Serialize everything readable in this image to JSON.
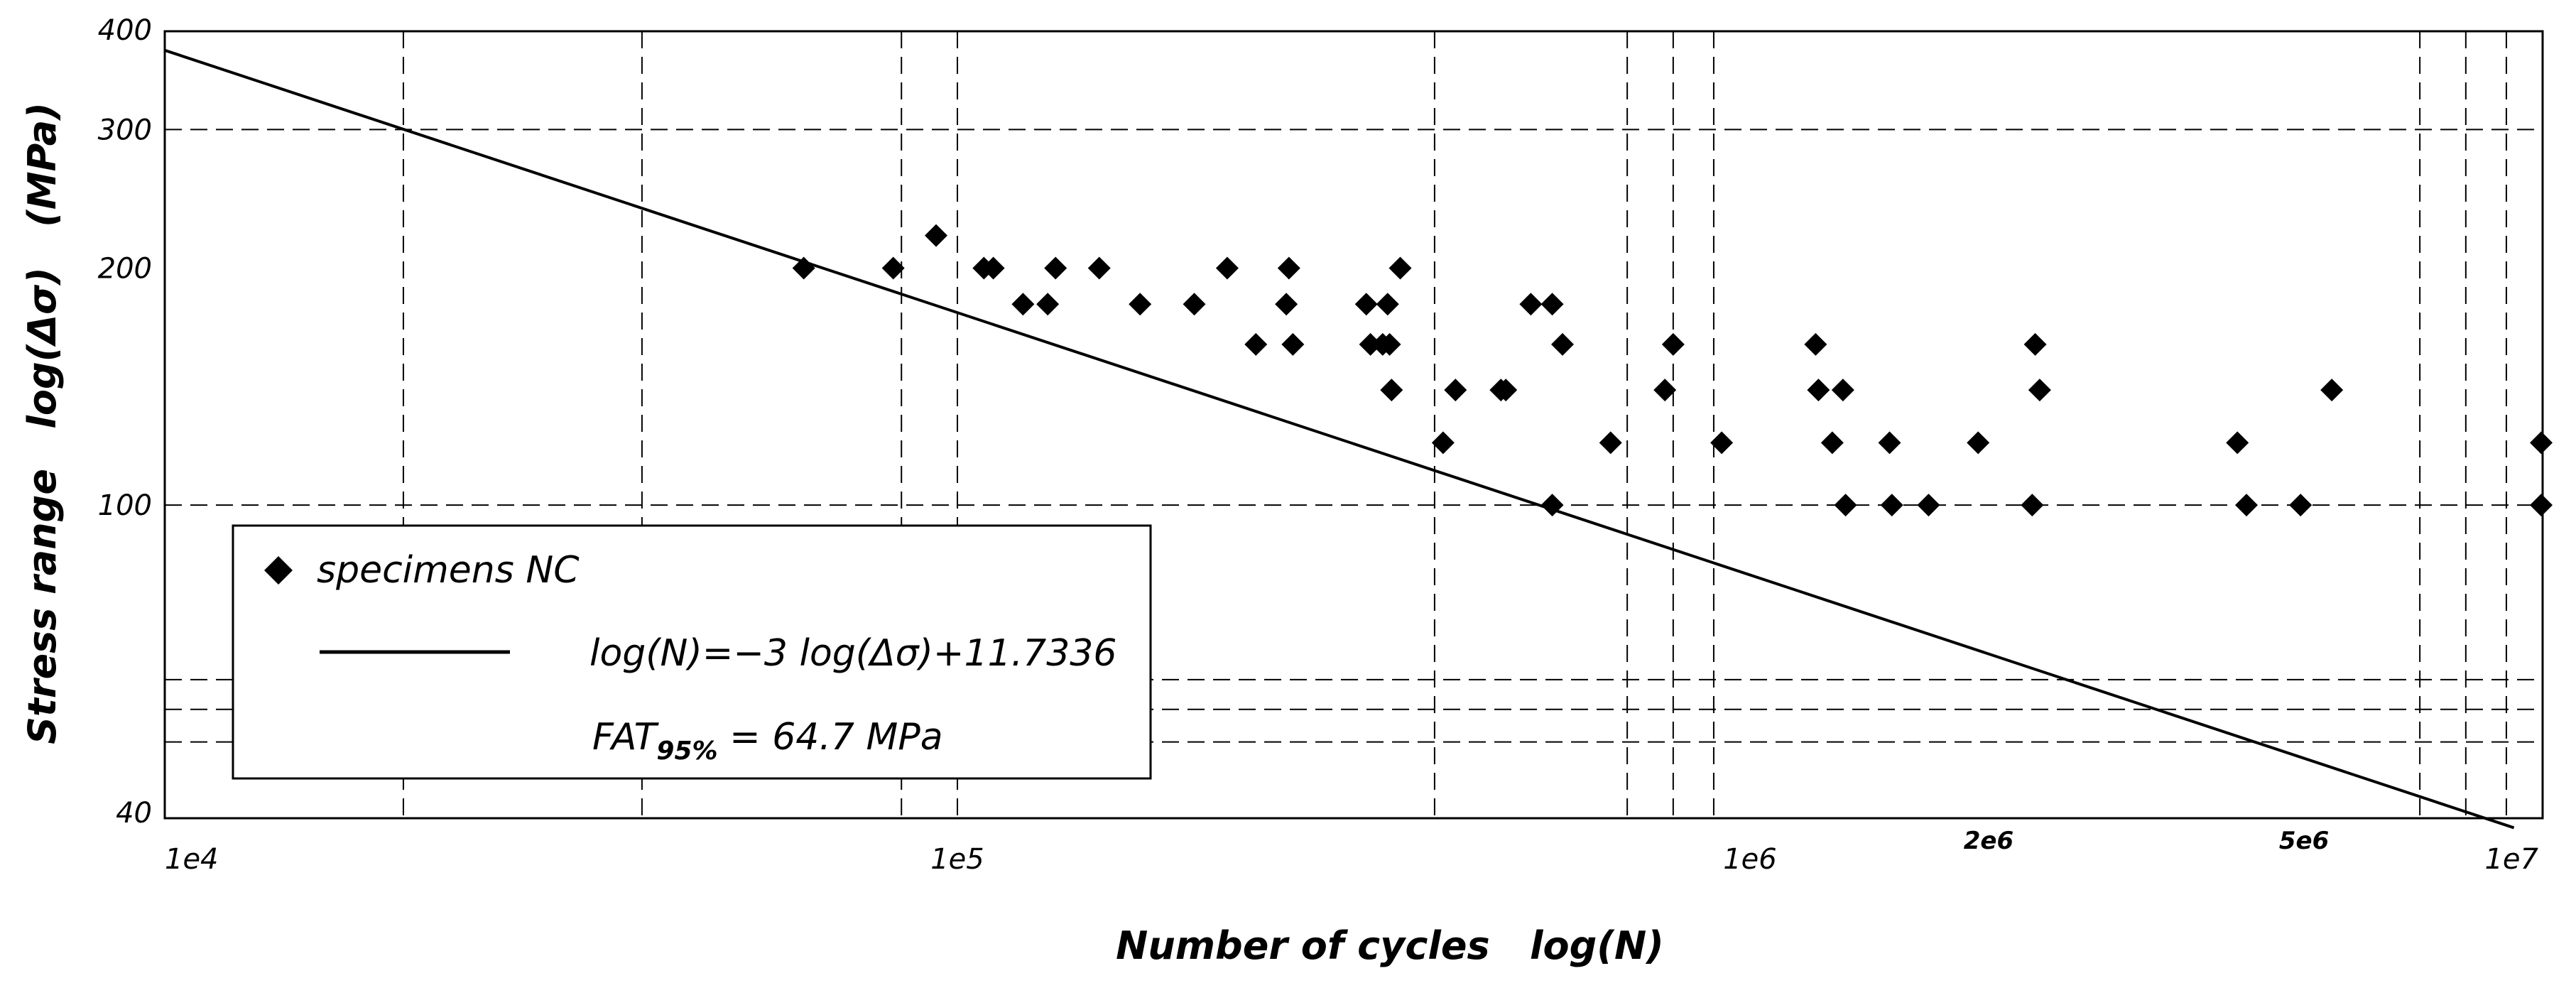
{
  "chart_data": {
    "type": "scatter",
    "xscale": "log",
    "yscale": "log",
    "xlim": [
      10000,
      10000000
    ],
    "ylim": [
      40,
      400
    ],
    "xlabel": "Number of cycles   log(N)",
    "ylabel": "Stress range   log(Δσ)   (MPa)",
    "x_tick_labels": [
      {
        "value": 10000,
        "label": "1e4"
      },
      {
        "value": 100000,
        "label": "1e5"
      },
      {
        "value": 1000000,
        "label": "1e6"
      },
      {
        "value": 2000000,
        "label": "2e6"
      },
      {
        "value": 5000000,
        "label": "5e6"
      },
      {
        "value": 10000000,
        "label": "1e7"
      }
    ],
    "y_tick_labels": [
      {
        "value": 40,
        "label": "40"
      },
      {
        "value": 100,
        "label": "100"
      },
      {
        "value": 200,
        "label": "200"
      },
      {
        "value": 300,
        "label": "300"
      },
      {
        "value": 400,
        "label": "400"
      }
    ],
    "x_gridlines": [
      20000,
      40000,
      85000,
      100000,
      400000,
      700000,
      800000,
      900000,
      7000000,
      8000000,
      9000000
    ],
    "y_gridlines": [
      50,
      55,
      60,
      100,
      300
    ],
    "series": [
      {
        "name": "specimens NC",
        "marker": "diamond",
        "color": "#000000",
        "points": [
          [
            64000,
            200
          ],
          [
            83000,
            200
          ],
          [
            94000,
            220
          ],
          [
            108000,
            200
          ],
          [
            111000,
            200
          ],
          [
            121000,
            180
          ],
          [
            130000,
            180
          ],
          [
            133000,
            200
          ],
          [
            151000,
            200
          ],
          [
            170000,
            180
          ],
          [
            199000,
            180
          ],
          [
            219000,
            200
          ],
          [
            238000,
            160
          ],
          [
            260000,
            180
          ],
          [
            262000,
            200
          ],
          [
            265000,
            160
          ],
          [
            328000,
            180
          ],
          [
            332000,
            160
          ],
          [
            344000,
            160
          ],
          [
            349000,
            180
          ],
          [
            351000,
            160
          ],
          [
            353000,
            140
          ],
          [
            362000,
            200
          ],
          [
            410000,
            120
          ],
          [
            425000,
            140
          ],
          [
            485000,
            140
          ],
          [
            492000,
            140
          ],
          [
            529000,
            180
          ],
          [
            563000,
            180
          ],
          [
            563000,
            100
          ],
          [
            580000,
            160
          ],
          [
            667000,
            120
          ],
          [
            781000,
            140
          ],
          [
            800000,
            160
          ],
          [
            921000,
            120
          ],
          [
            1210000,
            160
          ],
          [
            1220000,
            140
          ],
          [
            1270000,
            120
          ],
          [
            1310000,
            140
          ],
          [
            1320000,
            100
          ],
          [
            1500000,
            120
          ],
          [
            1510000,
            100
          ],
          [
            1680000,
            100
          ],
          [
            1940000,
            120
          ],
          [
            2270000,
            100
          ],
          [
            2290000,
            160
          ],
          [
            2320000,
            140
          ],
          [
            4120000,
            120
          ],
          [
            4230000,
            100
          ],
          [
            4950000,
            100
          ],
          [
            5420000,
            140
          ],
          [
            10000000,
            120
          ],
          [
            10000000,
            100
          ]
        ]
      },
      {
        "name": "log(N)=−3 log(Δσ)+11.7336",
        "type": "line",
        "equation": {
          "slope": -3,
          "intercept": 11.7336
        },
        "x_range": [
          10000,
          9200000
        ],
        "color": "#000000"
      }
    ],
    "legend": {
      "position": "bottom-left",
      "marker_label": "specimens NC",
      "line_label": "log(N)=−3 log(Δσ)+11.7336",
      "fat_prefix": "FAT",
      "fat_subscript": "95%",
      "fat_value": " = 64.7 MPa"
    }
  }
}
